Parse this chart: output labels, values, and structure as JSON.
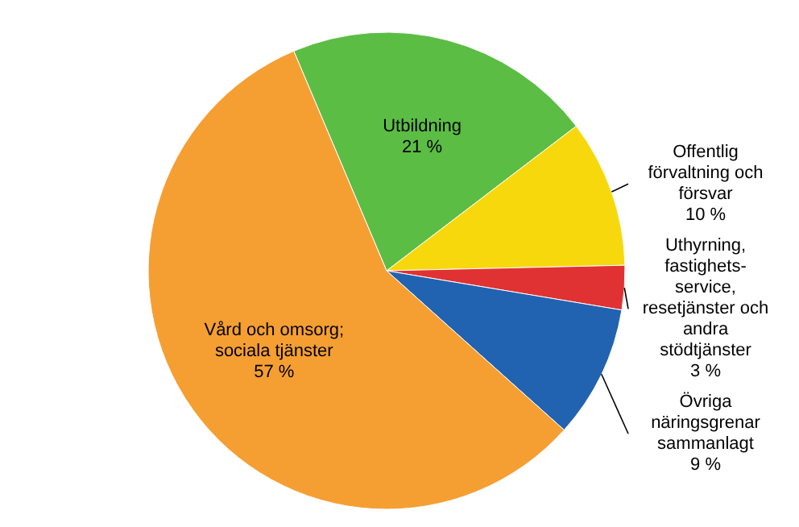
{
  "chart_data": {
    "type": "pie",
    "categories": [
      "Utbildning",
      "Offentlig förvaltning och försvar",
      "Uthyrning, fastighets-service, resetjänster och andra stödtjänster",
      "Övriga näringsgrenar sammanlagt",
      "Vård och omsorg; sociala tjänster"
    ],
    "values": [
      21,
      10,
      3,
      9,
      57
    ],
    "value_labels": [
      "21 %",
      "10 %",
      "3 %",
      "9 %",
      "57 %"
    ],
    "colors": [
      "#5cbd45",
      "#f7d80c",
      "#e03232",
      "#2163b1",
      "#f59f32"
    ]
  }
}
